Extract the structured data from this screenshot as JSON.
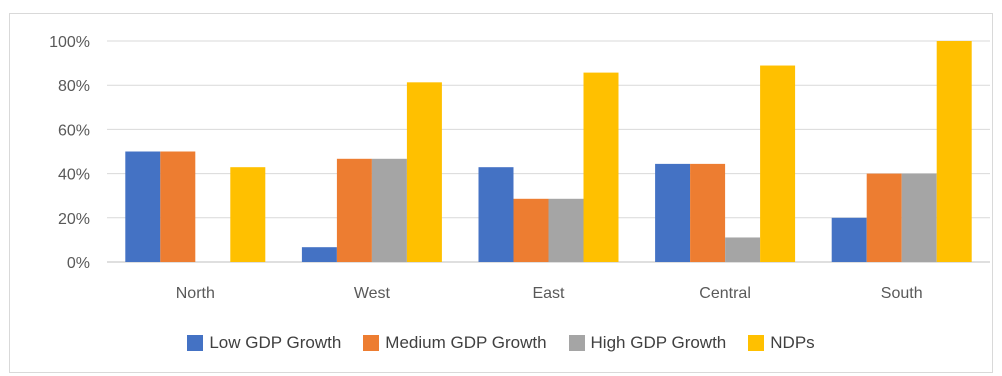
{
  "chart_data": {
    "type": "bar",
    "title": "",
    "xlabel": "",
    "ylabel": "",
    "categories": [
      "North",
      "West",
      "East",
      "Central",
      "South"
    ],
    "series": [
      {
        "name": "Low GDP Growth",
        "color": "#4472C4",
        "values": [
          50,
          6.7,
          42.9,
          44.4,
          20
        ]
      },
      {
        "name": "Medium GDP Growth",
        "color": "#ED7D31",
        "values": [
          50,
          46.7,
          28.6,
          44.4,
          40
        ]
      },
      {
        "name": "High GDP Growth",
        "color": "#A5A5A5",
        "values": [
          0,
          46.7,
          28.6,
          11.1,
          40
        ]
      },
      {
        "name": "NDPs",
        "color": "#FFC000",
        "values": [
          42.9,
          81.3,
          85.7,
          88.9,
          100
        ]
      }
    ],
    "ylim": [
      0,
      100
    ],
    "yticks": [
      "0%",
      "20%",
      "40%",
      "60%",
      "80%",
      "100%"
    ],
    "grid": true,
    "legend_position": "bottom"
  }
}
